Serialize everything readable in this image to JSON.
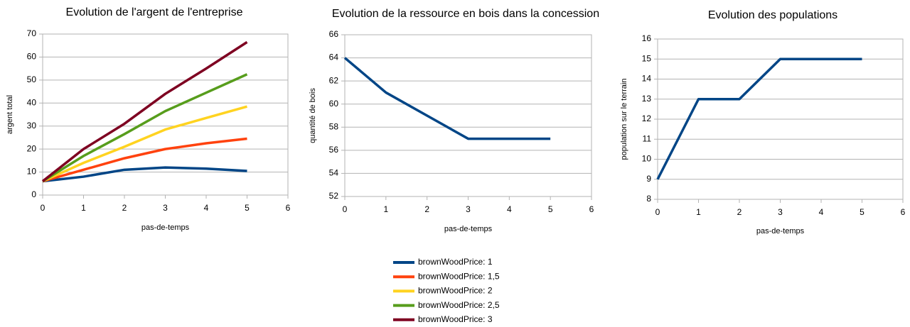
{
  "chart_data": [
    {
      "type": "line",
      "title": "Evolution de l'argent de l'entreprise",
      "x_label": "pas-de-temps",
      "y_label": "argent total",
      "x": [
        0,
        1,
        2,
        3,
        4,
        5
      ],
      "xlim": [
        0,
        6
      ],
      "xticks": [
        0,
        1,
        2,
        3,
        4,
        5,
        6
      ],
      "ylim": [
        0,
        70
      ],
      "yticks": [
        0,
        10,
        20,
        30,
        40,
        50,
        60,
        70
      ],
      "grid": true,
      "legend": "bottom",
      "series": [
        {
          "name": "brownWoodPrice: 1",
          "color": "#004586",
          "values": [
            6,
            8,
            11,
            12,
            11.5,
            10.5
          ]
        },
        {
          "name": "brownWoodPrice: 1,5",
          "color": "#ff420e",
          "values": [
            6,
            11,
            16,
            20,
            22.5,
            24.5
          ]
        },
        {
          "name": "brownWoodPrice: 2",
          "color": "#ffd320",
          "values": [
            6,
            14,
            21,
            28.5,
            33.5,
            38.5
          ]
        },
        {
          "name": "brownWoodPrice: 2,5",
          "color": "#579d1c",
          "values": [
            6,
            17,
            26.5,
            36.5,
            44.5,
            52.5
          ]
        },
        {
          "name": "brownWoodPrice: 3",
          "color": "#7e0021",
          "values": [
            6,
            20,
            31,
            44,
            55,
            66.5
          ]
        }
      ]
    },
    {
      "type": "line",
      "title": "Evolution de la ressource en bois dans la concession",
      "x_label": "pas-de-temps",
      "y_label": "quantité de bois",
      "x": [
        0,
        1,
        2,
        3,
        4,
        5
      ],
      "xlim": [
        0,
        6
      ],
      "xticks": [
        0,
        1,
        2,
        3,
        4,
        5,
        6
      ],
      "ylim": [
        52,
        66
      ],
      "yticks": [
        52,
        54,
        56,
        58,
        60,
        62,
        64,
        66
      ],
      "grid": true,
      "series": [
        {
          "color": "#004586",
          "values": [
            64,
            61,
            59,
            57,
            57,
            57
          ]
        }
      ]
    },
    {
      "type": "line",
      "title": "Evolution des populations",
      "x_label": "pas-de-temps",
      "y_label": "population sur le terrain",
      "x": [
        0,
        1,
        2,
        3,
        4,
        5
      ],
      "xlim": [
        0,
        6
      ],
      "xticks": [
        0,
        1,
        2,
        3,
        4,
        5,
        6
      ],
      "ylim": [
        8,
        16
      ],
      "yticks": [
        8,
        9,
        10,
        11,
        12,
        13,
        14,
        15,
        16
      ],
      "grid": true,
      "series": [
        {
          "color": "#004586",
          "values": [
            9,
            13,
            13,
            15,
            15,
            15
          ]
        }
      ]
    }
  ]
}
